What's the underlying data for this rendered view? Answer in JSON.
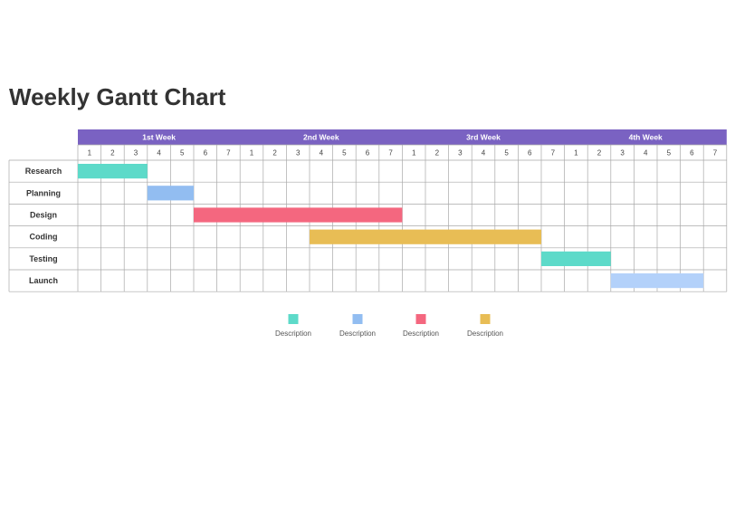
{
  "title": "Weekly Gantt Chart",
  "chart_data": {
    "type": "gantt",
    "weeks": [
      {
        "label": "1st Week",
        "days": [
          1,
          2,
          3,
          4,
          5,
          6,
          7
        ]
      },
      {
        "label": "2nd Week",
        "days": [
          1,
          2,
          3,
          4,
          5,
          6,
          7
        ]
      },
      {
        "label": "3rd Week",
        "days": [
          1,
          2,
          3,
          4,
          5,
          6,
          7
        ]
      },
      {
        "label": "4th Week",
        "days": [
          1,
          2,
          3,
          4,
          5,
          6,
          7
        ]
      }
    ],
    "tasks": [
      {
        "name": "Research",
        "start_day": 1,
        "end_day": 3,
        "color": "#5ddac9"
      },
      {
        "name": "Planning",
        "start_day": 4,
        "end_day": 5,
        "color": "#92bdf1"
      },
      {
        "name": "Design",
        "start_day": 6,
        "end_day": 14,
        "color": "#f4677f"
      },
      {
        "name": "Coding",
        "start_day": 11,
        "end_day": 20,
        "color": "#e8bd55"
      },
      {
        "name": "Testing",
        "start_day": 21,
        "end_day": 23,
        "color": "#5ddac9"
      },
      {
        "name": "Launch",
        "start_day": 24,
        "end_day": 27,
        "color": "#b3d1fa"
      }
    ],
    "legend": [
      {
        "label": "Description",
        "color": "#5ddac9"
      },
      {
        "label": "Description",
        "color": "#92bdf1"
      },
      {
        "label": "Description",
        "color": "#f4677f"
      },
      {
        "label": "Description",
        "color": "#e8bd55"
      }
    ],
    "header_color": "#7a62c2",
    "grid_color": "#a9a9a9"
  }
}
